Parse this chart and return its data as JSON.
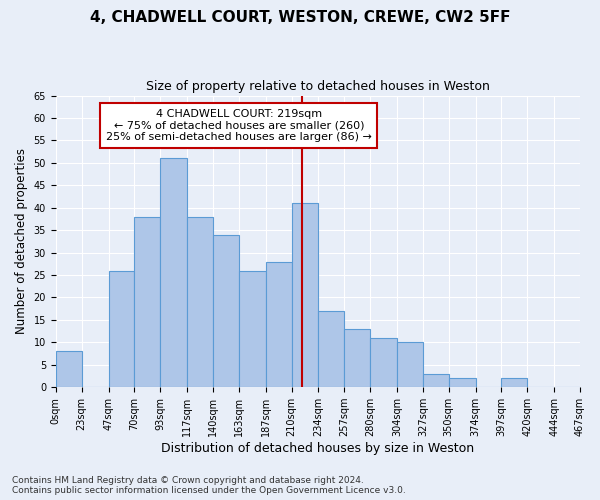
{
  "title1": "4, CHADWELL COURT, WESTON, CREWE, CW2 5FF",
  "title2": "Size of property relative to detached houses in Weston",
  "xlabel": "Distribution of detached houses by size in Weston",
  "ylabel": "Number of detached properties",
  "footnote1": "Contains HM Land Registry data © Crown copyright and database right 2024.",
  "footnote2": "Contains public sector information licensed under the Open Government Licence v3.0.",
  "bin_labels": [
    "0sqm",
    "23sqm",
    "47sqm",
    "70sqm",
    "93sqm",
    "117sqm",
    "140sqm",
    "163sqm",
    "187sqm",
    "210sqm",
    "234sqm",
    "257sqm",
    "280sqm",
    "304sqm",
    "327sqm",
    "350sqm",
    "374sqm",
    "397sqm",
    "420sqm",
    "444sqm",
    "467sqm"
  ],
  "bar_values": [
    8,
    0,
    26,
    38,
    51,
    38,
    34,
    26,
    28,
    41,
    17,
    13,
    11,
    10,
    3,
    2,
    0,
    2,
    0,
    0
  ],
  "bin_edges": [
    0,
    23,
    47,
    70,
    93,
    117,
    140,
    163,
    187,
    210,
    234,
    257,
    280,
    304,
    327,
    350,
    374,
    397,
    420,
    444,
    467
  ],
  "bar_color": "#aec6e8",
  "bar_edge_color": "#5b9bd5",
  "vline_x": 219,
  "vline_color": "#c00000",
  "annotation_text": "4 CHADWELL COURT: 219sqm\n← 75% of detached houses are smaller (260)\n25% of semi-detached houses are larger (86) →",
  "annotation_box_color": "#ffffff",
  "annotation_box_edge": "#c00000",
  "ylim": [
    0,
    65
  ],
  "yticks": [
    0,
    5,
    10,
    15,
    20,
    25,
    30,
    35,
    40,
    45,
    50,
    55,
    60,
    65
  ],
  "background_color": "#e8eef8",
  "grid_color": "#ffffff",
  "title1_fontsize": 11,
  "title2_fontsize": 9,
  "ylabel_fontsize": 8.5,
  "xlabel_fontsize": 9,
  "annotation_fontsize": 8,
  "tick_fontsize": 7,
  "footnote_fontsize": 6.5
}
